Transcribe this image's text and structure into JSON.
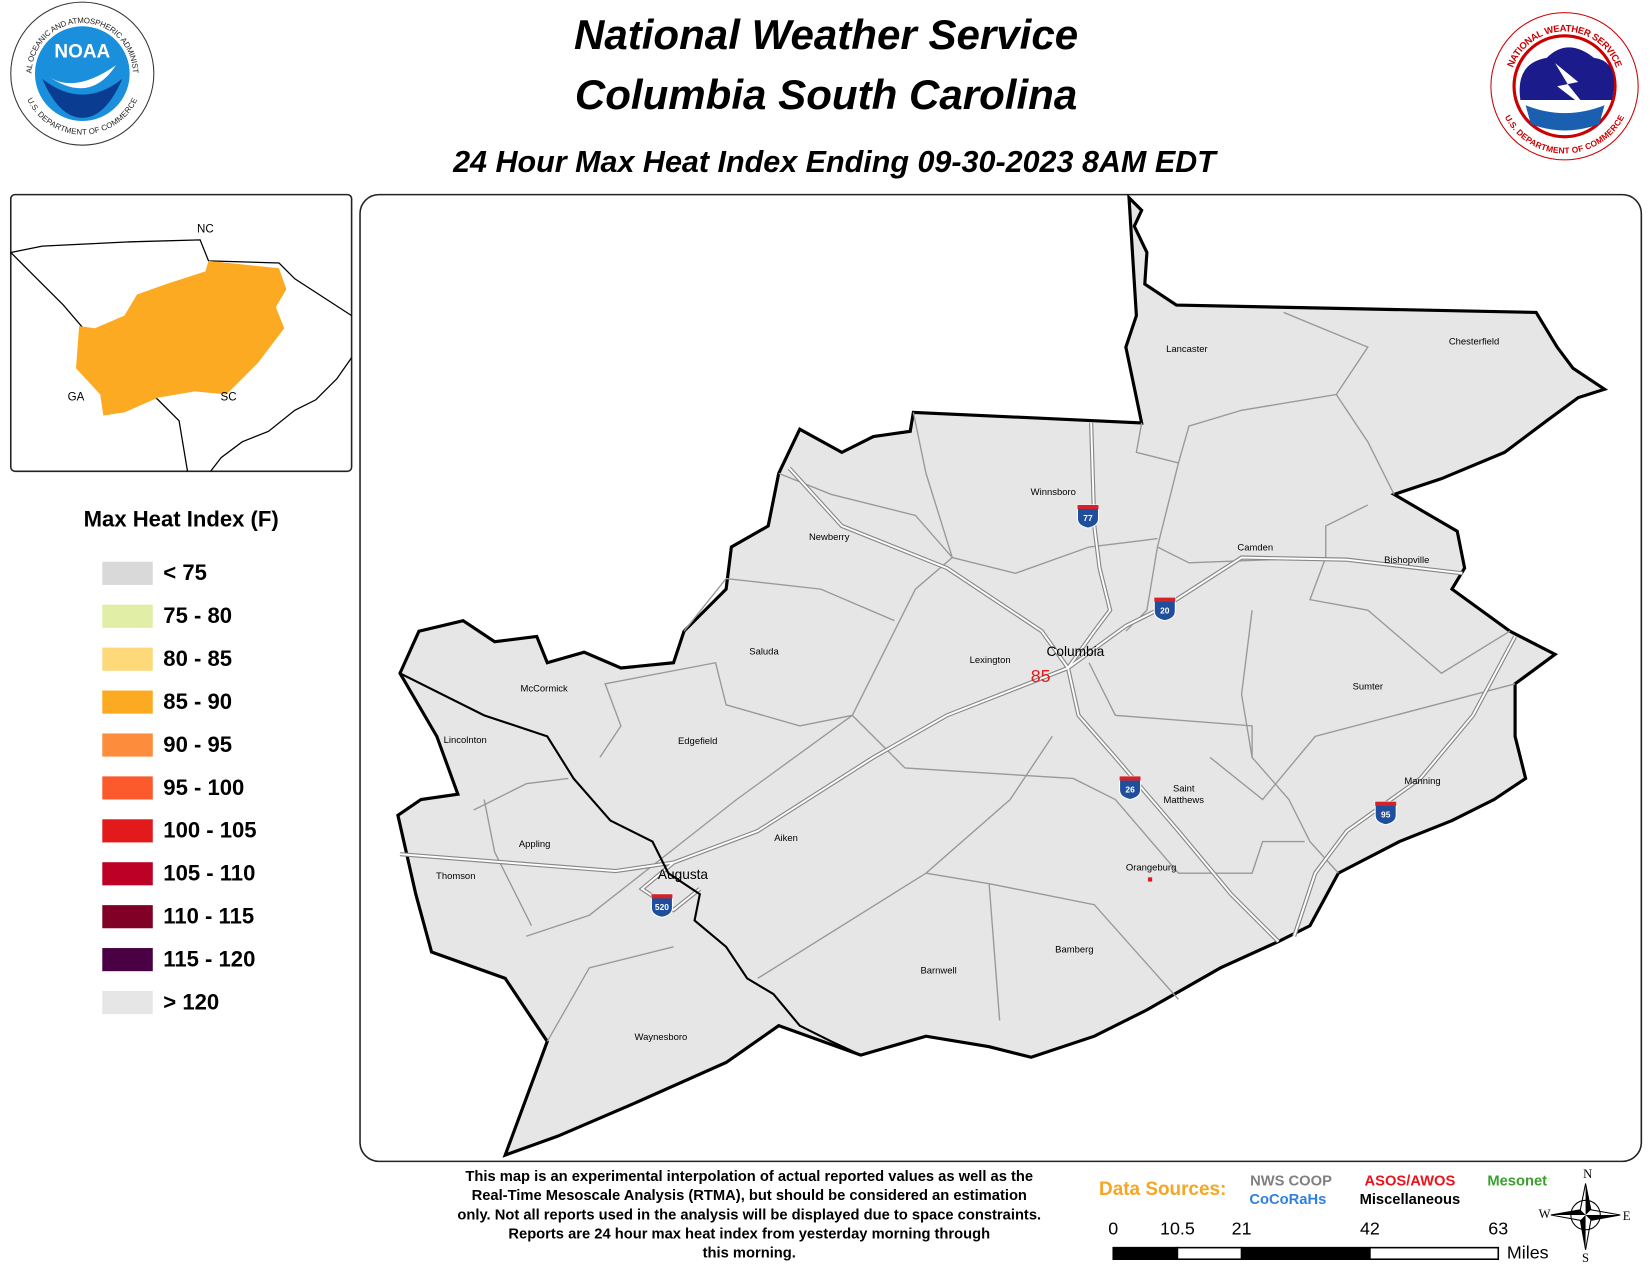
{
  "header": {
    "title": "National Weather Service",
    "subtitle": "Columbia South Carolina",
    "product": "24 Hour Max Heat Index Ending 09-30-2023 8AM EDT"
  },
  "noaa_logo": {
    "center": "NOAA",
    "ring": "NATIONAL OCEANIC AND ATMOSPHERIC ADMINISTRATION",
    "dept": "U.S. DEPARTMENT OF COMMERCE"
  },
  "nws_logo": {
    "ring": "NATIONAL WEATHER SERVICE",
    "dept": "U.S. DEPARTMENT OF COMMERCE"
  },
  "inset": {
    "labels": [
      "NC",
      "GA",
      "SC"
    ]
  },
  "legend": {
    "title": "Max Heat Index (F)",
    "items": [
      {
        "label": "< 75",
        "color": "#d9d9d9"
      },
      {
        "label": "75 - 80",
        "color": "#e1eea6"
      },
      {
        "label": "80 - 85",
        "color": "#fdd97a"
      },
      {
        "label": "85 - 90",
        "color": "#fdaa23"
      },
      {
        "label": "90 - 95",
        "color": "#fd8d3c"
      },
      {
        "label": "95 - 100",
        "color": "#fc5a2d"
      },
      {
        "label": "100 - 105",
        "color": "#e31a1c"
      },
      {
        "label": "105 - 110",
        "color": "#bd0026"
      },
      {
        "label": "110 - 115",
        "color": "#800026"
      },
      {
        "label": "115 - 120",
        "color": "#4a0042"
      },
      {
        "label": "> 120",
        "color": "#e6e6e6"
      }
    ]
  },
  "map": {
    "cities": [
      "Lancaster",
      "Chesterfield",
      "Winnsboro",
      "Newberry",
      "Camden",
      "Bishopville",
      "Saluda",
      "Lexington",
      "McCormick",
      "Sumter",
      "Lincolnton",
      "Edgefield",
      "Saint",
      "Matthews",
      "Manning",
      "Aiken",
      "Appling",
      "Thomson",
      "Orangeburg",
      "Barnwell",
      "Bamberg",
      "Waynesboro"
    ],
    "major_cities": [
      "Columbia",
      "Augusta"
    ],
    "interstates": [
      "77",
      "20",
      "26",
      "95",
      "520"
    ],
    "observations": [
      85
    ]
  },
  "footer": {
    "note": [
      "This map is an experimental interpolation of actual reported values as well as the",
      "Real-Time Mesoscale Analysis (RTMA), but should be considered an estimation",
      "only. Not all reports used in the analysis will be displayed due to space constraints.",
      "Reports are 24 hour max heat index from yesterday morning through",
      "this morning."
    ],
    "sources_label": "Data Sources:",
    "sources": [
      {
        "name": "NWS COOP",
        "color": "#7f7f7f"
      },
      {
        "name": "ASOS/AWOS",
        "color": "#e8131b"
      },
      {
        "name": "Mesonet",
        "color": "#3aa02c"
      },
      {
        "name": "CoCoRaHs",
        "color": "#2f7fe0"
      },
      {
        "name": "Miscellaneous",
        "color": "#000000"
      }
    ],
    "scale": {
      "ticks": [
        0,
        10.5,
        21,
        42,
        63
      ],
      "unit": "Miles"
    },
    "compass": [
      "N",
      "E",
      "S",
      "W"
    ]
  }
}
